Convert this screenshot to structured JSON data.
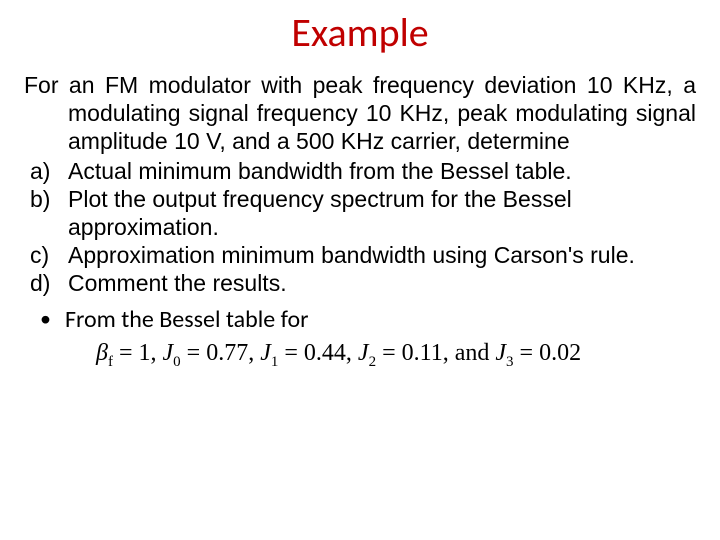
{
  "title": "Example",
  "intro": "For an FM modulator with peak frequency deviation 10 KHz, a modulating signal frequency 10 KHz, peak modulating signal amplitude 10 V, and a 500 KHz carrier, determine",
  "items": {
    "a": {
      "marker": "a)",
      "text": "Actual minimum bandwidth from the Bessel table."
    },
    "b": {
      "marker": "b)",
      "text": "Plot the output frequency spectrum for the Bessel approximation."
    },
    "c": {
      "marker": "c)",
      "text": "Approximation minimum bandwidth using Carson's rule."
    },
    "d": {
      "marker": "d)",
      "text": "Comment the results."
    }
  },
  "bullet": "From the Bessel table for",
  "formula_parts": {
    "beta": "β",
    "beta_sub": "f",
    "eq1": " = 1,  ",
    "J0": "J",
    "J0_sub": "0",
    "J0_val": " = 0.77, ",
    "J1": "J",
    "J1_sub": "1",
    "J1_val": " = 0.44, ",
    "J2": "J",
    "J2_sub": "2",
    "J2_val": " = 0.11, ",
    "and": "and ",
    "J3": "J",
    "J3_sub": "3",
    "J3_val": " = 0.02"
  },
  "colors": {
    "title_color": "#c00000",
    "text_color": "#000000",
    "background": "#ffffff"
  },
  "fonts": {
    "title_font": "Calibri",
    "body_font": "Arial",
    "formula_font": "Times New Roman",
    "title_size_pt": 30,
    "body_size_pt": 17,
    "formula_size_pt": 18
  }
}
